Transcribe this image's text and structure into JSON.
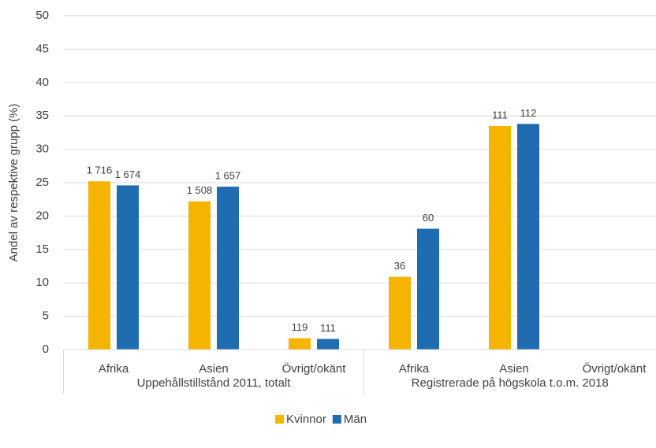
{
  "chart_data": {
    "type": "bar",
    "ylabel": "Andel av respektive grupp (%)",
    "categories": [
      "Afrika",
      "Asien",
      "Övrigt/okänt",
      "Afrika",
      "Asien",
      "Övrigt/okänt"
    ],
    "groups": [
      {
        "label": "Uppehållstillstånd 2011, totalt",
        "size": 3
      },
      {
        "label": "Registrerade på högskola t.o.m. 2018",
        "size": 3
      }
    ],
    "series": [
      {
        "name": "Kvinnor",
        "color": "#f5b400",
        "values": [
          25.2,
          22.2,
          1.7,
          10.9,
          33.5,
          null
        ],
        "count_labels": [
          "1 716",
          "1 508",
          "119",
          "36",
          "111",
          null
        ]
      },
      {
        "name": "Män",
        "color": "#1f6cb0",
        "values": [
          24.6,
          24.4,
          1.6,
          18.1,
          33.8,
          null
        ],
        "count_labels": [
          "1 674",
          "1 657",
          "111",
          "60",
          "112",
          null
        ]
      }
    ],
    "ylim": [
      0,
      50
    ],
    "yticks": [
      0,
      5,
      10,
      15,
      20,
      25,
      30,
      35,
      40,
      45,
      50
    ],
    "grid": true,
    "legend": "bottom"
  }
}
